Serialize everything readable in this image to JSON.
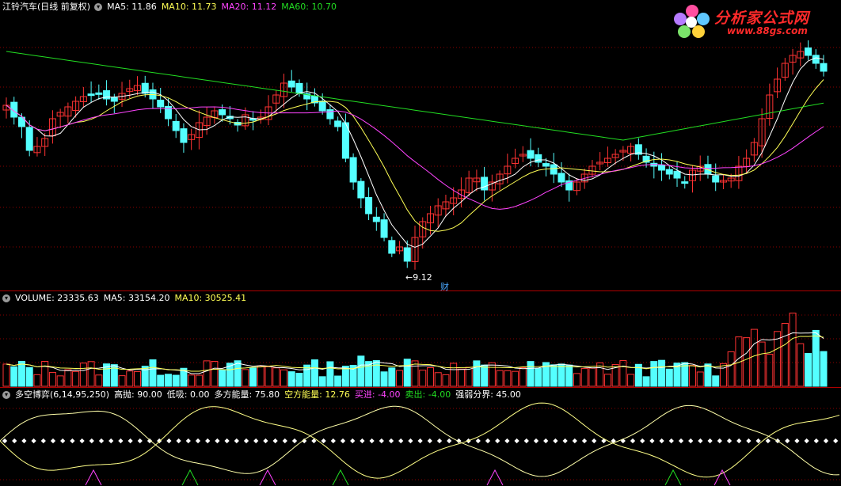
{
  "price_panel": {
    "title": "江铃汽车(日线 前复权)",
    "indicators": [
      {
        "label": "MA5: 11.86",
        "color": "#ffffff"
      },
      {
        "label": "MA10: 11.73",
        "color": "#ffff55"
      },
      {
        "label": "MA20: 11.12",
        "color": "#ff44ff"
      },
      {
        "label": "MA60: 10.70",
        "color": "#22dd22"
      }
    ],
    "low_marker": "9.12",
    "event_marker": "财"
  },
  "volume_panel": {
    "indicators": [
      {
        "label": "VOLUME: 23335.63",
        "color": "#ffffff"
      },
      {
        "label": "MA5: 33154.20",
        "color": "#ffffff"
      },
      {
        "label": "MA10: 30525.41",
        "color": "#ffff55"
      }
    ]
  },
  "game_panel": {
    "title": "多空博弈(6,14,95,250)",
    "indicators": [
      {
        "label": "高抛: 90.00",
        "color": "#ffffff"
      },
      {
        "label": "低吸: 0.00",
        "color": "#ffffff"
      },
      {
        "label": "多方能量: 75.80",
        "color": "#ffffff"
      },
      {
        "label": "空方能量: 12.76",
        "color": "#ffff55"
      },
      {
        "label": "买进: -4.00",
        "color": "#ff44ff"
      },
      {
        "label": "卖出: -4.00",
        "color": "#22dd22"
      },
      {
        "label": "强弱分界: 45.00",
        "color": "#ffffff"
      }
    ]
  },
  "logo": {
    "name": "分析家公式网",
    "url": "www.88gs.com"
  },
  "colors": {
    "up": "#ff3333",
    "down": "#54ffff",
    "grid": "#8b0000",
    "ma5": "#ffffff",
    "ma10": "#ffff55",
    "ma20": "#ff44ff",
    "ma60": "#22dd22"
  }
}
